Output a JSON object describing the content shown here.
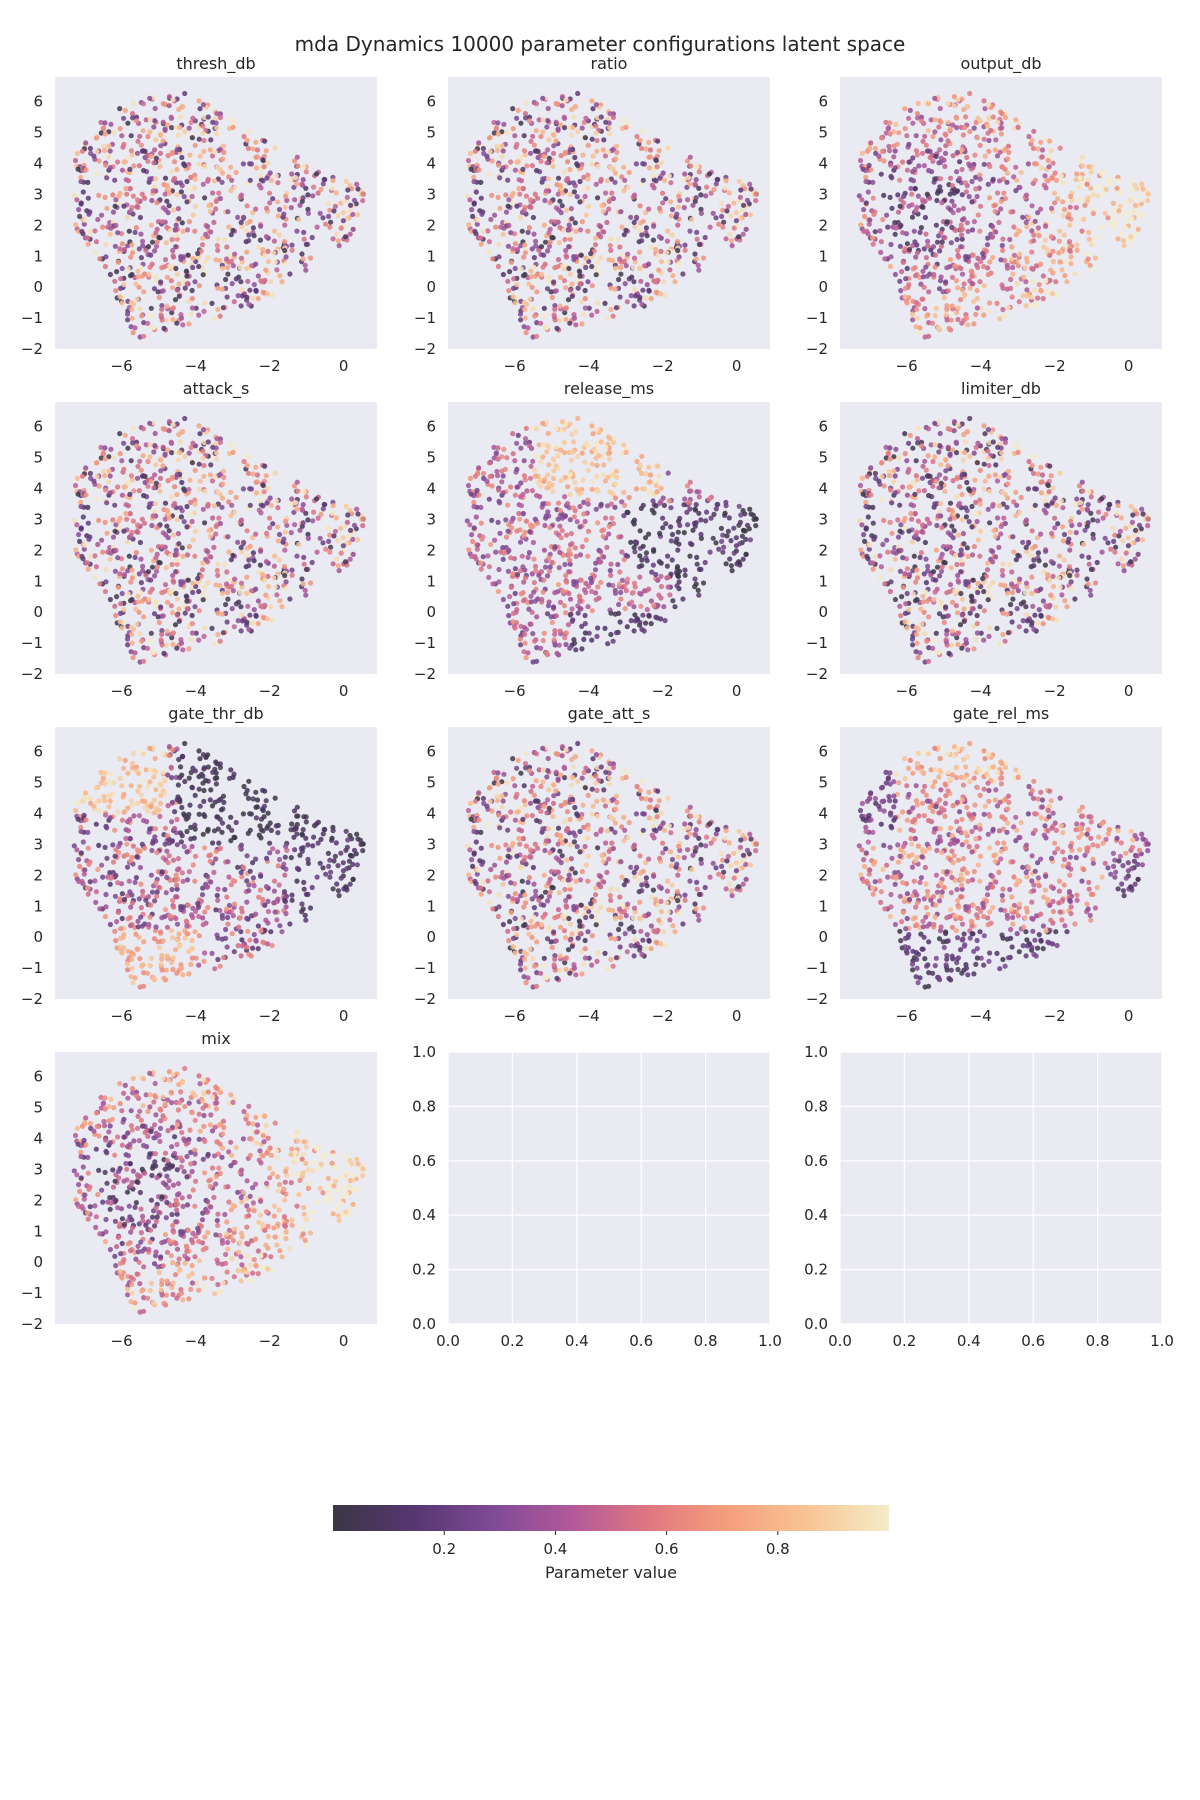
{
  "chart_data": {
    "type": "scatter",
    "title": "mda Dynamics 10000 parameter configurations latent space",
    "n_points": 10000,
    "latent_xlim": [
      -7.8,
      0.9
    ],
    "latent_ylim": [
      -2,
      6.8
    ],
    "latent_xticks": [
      "−6",
      "−4",
      "−2",
      "0"
    ],
    "latent_yticks": [
      "6",
      "5",
      "4",
      "3",
      "2",
      "1",
      "0",
      "−1",
      "−2"
    ],
    "empty_xticks": [
      "0.0",
      "0.2",
      "0.4",
      "0.6",
      "0.8",
      "1.0"
    ],
    "empty_yticks": [
      "1.0",
      "0.8",
      "0.6",
      "0.4",
      "0.2",
      "0.0"
    ],
    "grid": true,
    "colormap": "magma",
    "panels": [
      {
        "name": "thresh_db",
        "pattern": "random"
      },
      {
        "name": "ratio",
        "pattern": "random"
      },
      {
        "name": "output_db",
        "pattern": "output"
      },
      {
        "name": "attack_s",
        "pattern": "random"
      },
      {
        "name": "release_ms",
        "pattern": "release"
      },
      {
        "name": "limiter_db",
        "pattern": "random_dark"
      },
      {
        "name": "gate_thr_db",
        "pattern": "gate_thr"
      },
      {
        "name": "gate_att_s",
        "pattern": "random"
      },
      {
        "name": "gate_rel_ms",
        "pattern": "gate_rel"
      },
      {
        "name": "mix",
        "pattern": "output"
      }
    ],
    "colorbar": {
      "label": "Parameter value",
      "ticks": [
        "0.2",
        "0.4",
        "0.6",
        "0.8"
      ],
      "tick_values": [
        0.2,
        0.4,
        0.6,
        0.8
      ],
      "range": [
        0,
        1
      ]
    },
    "colors": {
      "axes_bg": "#eaeaf2",
      "grid": "#ffffff",
      "cmap_stops": [
        "#3b3745",
        "#56366f",
        "#7f4a96",
        "#b2599a",
        "#e07880",
        "#f5a07c",
        "#f8c595",
        "#f4ecc8"
      ]
    }
  }
}
